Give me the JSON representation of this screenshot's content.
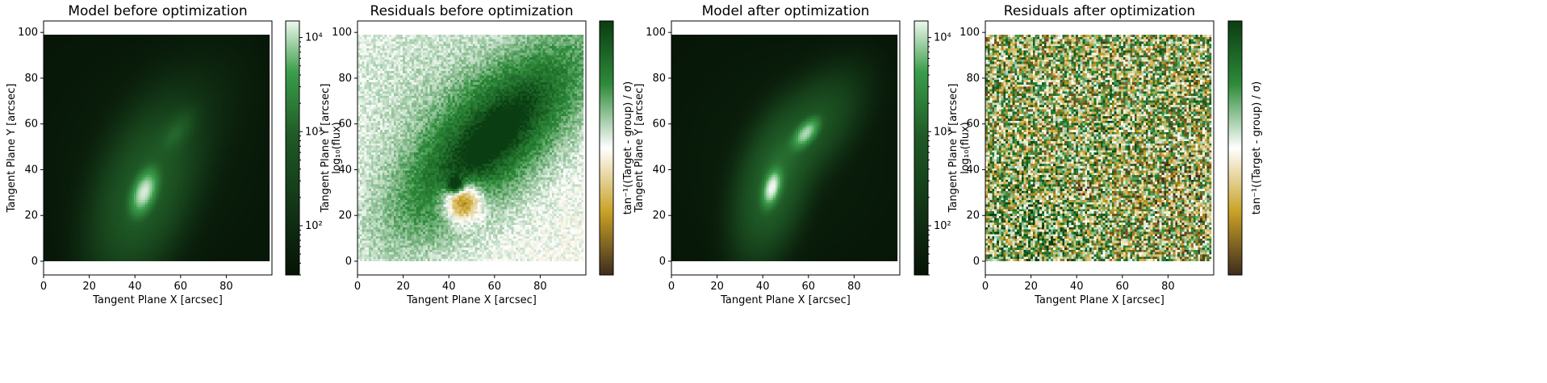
{
  "figure": {
    "panels": [
      {
        "title": "Model before optimization",
        "xlabel": "Tangent Plane X [arcsec]",
        "ylabel": "Tangent Plane Y [arcsec]",
        "kind": "model",
        "colorbar_label": "log₁₀(flux)",
        "colorbar_ticks": [
          "10²",
          "10³",
          "10⁴"
        ]
      },
      {
        "title": "Residuals before optimization",
        "xlabel": "Tangent Plane X [arcsec]",
        "ylabel": "Tangent Plane Y [arcsec]",
        "kind": "residual",
        "colorbar_label": "tan⁻¹((Target - group) / σ)",
        "colorbar_ticks": []
      },
      {
        "title": "Model after optimization",
        "xlabel": "Tangent Plane X [arcsec]",
        "ylabel": "Tangent Plane Y [arcsec]",
        "kind": "model",
        "colorbar_label": "log₁₀(flux)",
        "colorbar_ticks": [
          "10²",
          "10³",
          "10⁴"
        ]
      },
      {
        "title": "Residuals after optimization",
        "xlabel": "Tangent Plane X [arcsec]",
        "ylabel": "Tangent Plane Y [arcsec]",
        "kind": "residual",
        "colorbar_label": "tan⁻¹((Target - group) / σ)",
        "colorbar_ticks": []
      }
    ]
  },
  "chart_data": [
    {
      "type": "heatmap",
      "title": "Model before optimization",
      "xlabel": "Tangent Plane X [arcsec]",
      "ylabel": "Tangent Plane Y [arcsec]",
      "xlim": [
        0,
        100
      ],
      "ylim": [
        -6,
        105
      ],
      "xticks": [
        0,
        20,
        40,
        60,
        80
      ],
      "yticks": [
        0,
        20,
        40,
        60,
        80,
        100
      ],
      "image_extent": {
        "x": [
          0,
          99
        ],
        "y": [
          0,
          99
        ]
      },
      "colorscale": "log",
      "colormap": "Greens_r",
      "colorbar_label": "log₁₀(flux)",
      "colorbar_ticks": [
        100,
        1000,
        10000
      ],
      "sources": [
        {
          "x": 44,
          "y": 30,
          "peak": 12000,
          "sigma_major": 5,
          "sigma_minor": 2.5,
          "angle_deg": 70
        },
        {
          "x": 58,
          "y": 56,
          "peak": 800,
          "sigma_major": 6,
          "sigma_minor": 3,
          "angle_deg": 55
        }
      ]
    },
    {
      "type": "heatmap",
      "title": "Residuals before optimization",
      "xlabel": "Tangent Plane X [arcsec]",
      "ylabel": "Tangent Plane Y [arcsec]",
      "xlim": [
        0,
        100
      ],
      "ylim": [
        -6,
        105
      ],
      "xticks": [
        0,
        20,
        40,
        60,
        80
      ],
      "yticks": [
        0,
        20,
        40,
        60,
        80,
        100
      ],
      "image_extent": {
        "x": [
          0,
          99
        ],
        "y": [
          0,
          99
        ]
      },
      "colormap": "BrBG-like diverging",
      "colorbar_label": "tan⁻¹((Target - group) / σ)",
      "features": [
        {
          "x": 60,
          "y": 55,
          "sign": "positive"
        },
        {
          "x": 43,
          "y": 33,
          "sign": "positive"
        },
        {
          "x": 47,
          "y": 27,
          "sign": "negative"
        }
      ]
    },
    {
      "type": "heatmap",
      "title": "Model after optimization",
      "xlabel": "Tangent Plane X [arcsec]",
      "ylabel": "Tangent Plane Y [arcsec]",
      "xlim": [
        0,
        100
      ],
      "ylim": [
        -6,
        105
      ],
      "xticks": [
        0,
        20,
        40,
        60,
        80
      ],
      "yticks": [
        0,
        20,
        40,
        60,
        80,
        100
      ],
      "image_extent": {
        "x": [
          0,
          99
        ],
        "y": [
          0,
          99
        ]
      },
      "colorscale": "log",
      "colormap": "Greens_r",
      "colorbar_label": "log₁₀(flux)",
      "colorbar_ticks": [
        100,
        1000,
        10000
      ],
      "sources": [
        {
          "x": 44,
          "y": 32,
          "peak": 15000,
          "sigma_major": 4,
          "sigma_minor": 1.8,
          "angle_deg": 75
        },
        {
          "x": 59,
          "y": 56,
          "peak": 9000,
          "sigma_major": 4,
          "sigma_minor": 2,
          "angle_deg": 50
        }
      ]
    },
    {
      "type": "heatmap",
      "title": "Residuals after optimization",
      "xlabel": "Tangent Plane X [arcsec]",
      "ylabel": "Tangent Plane Y [arcsec]",
      "xlim": [
        0,
        100
      ],
      "ylim": [
        -6,
        105
      ],
      "xticks": [
        0,
        20,
        40,
        60,
        80
      ],
      "yticks": [
        0,
        20,
        40,
        60,
        80,
        100
      ],
      "image_extent": {
        "x": [
          0,
          99
        ],
        "y": [
          0,
          99
        ]
      },
      "colormap": "BrBG-like diverging",
      "colorbar_label": "tan⁻¹((Target - group) / σ)",
      "features": [
        {
          "x": 43,
          "y": 31,
          "sign": "negative"
        },
        {
          "x": 58,
          "y": 55,
          "sign": "negative"
        }
      ]
    }
  ],
  "colors": {
    "model_dark": "#061306",
    "model_mid": "#3a9e4a",
    "model_light": "#eef8ee",
    "resid_neg_dark": "#3e2c1d",
    "resid_neg": "#c9a227",
    "resid_zero": "#ffffff",
    "resid_pos": "#2e8b3a",
    "resid_pos_dark": "#0a3d12"
  }
}
